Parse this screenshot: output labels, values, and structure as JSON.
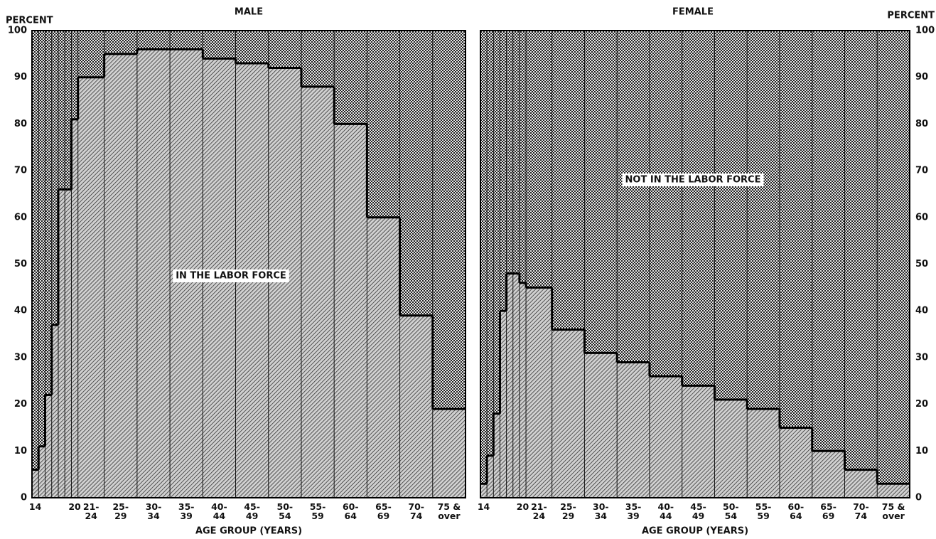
{
  "chart_data": [
    {
      "type": "histogram",
      "title": "MALE",
      "ylabel": "PERCENT",
      "xlabel": "AGE GROUP (YEARS)",
      "annotation": "IN THE LABOR FORCE",
      "y_axis_side": "left",
      "bins": [
        14,
        15,
        16,
        17,
        18,
        19,
        20,
        21,
        25,
        30,
        35,
        40,
        45,
        50,
        55,
        60,
        65,
        70,
        75,
        80
      ],
      "categories": [
        "14",
        null,
        null,
        null,
        null,
        null,
        "20",
        "21-\n24",
        "25-\n29",
        "30-\n34",
        "35-\n39",
        "40-\n44",
        "45-\n49",
        "50-\n54",
        "55-\n59",
        "60-\n64",
        "65-\n69",
        "70-\n74",
        "75 &\nover"
      ],
      "values": [
        6,
        11,
        22,
        37,
        66,
        66,
        81,
        90,
        95,
        96,
        96,
        94,
        93,
        92,
        88,
        80,
        60,
        39,
        19
      ],
      "xlim": [
        14,
        80
      ],
      "ylim": [
        0,
        100
      ],
      "yticks": [
        0,
        10,
        20,
        30,
        40,
        50,
        60,
        70,
        80,
        90,
        100
      ]
    },
    {
      "type": "histogram",
      "title": "FEMALE",
      "ylabel": "PERCENT",
      "xlabel": "AGE GROUP (YEARS)",
      "annotation": "NOT IN THE LABOR FORCE",
      "y_axis_side": "right",
      "bins": [
        14,
        15,
        16,
        17,
        18,
        19,
        20,
        21,
        25,
        30,
        35,
        40,
        45,
        50,
        55,
        60,
        65,
        70,
        75,
        80
      ],
      "categories": [
        "14",
        null,
        null,
        null,
        null,
        null,
        "20",
        "21-\n24",
        "25-\n29",
        "30-\n34",
        "35-\n39",
        "40-\n44",
        "45-\n49",
        "50-\n54",
        "55-\n59",
        "60-\n64",
        "65-\n69",
        "70-\n74",
        "75 &\nover"
      ],
      "values": [
        3,
        9,
        18,
        40,
        48,
        48,
        46,
        45,
        36,
        31,
        29,
        26,
        24,
        21,
        19,
        15,
        10,
        6,
        3
      ],
      "xlim": [
        14,
        80
      ],
      "ylim": [
        0,
        100
      ],
      "yticks": [
        0,
        10,
        20,
        30,
        40,
        50,
        60,
        70,
        80,
        90,
        100
      ]
    }
  ]
}
